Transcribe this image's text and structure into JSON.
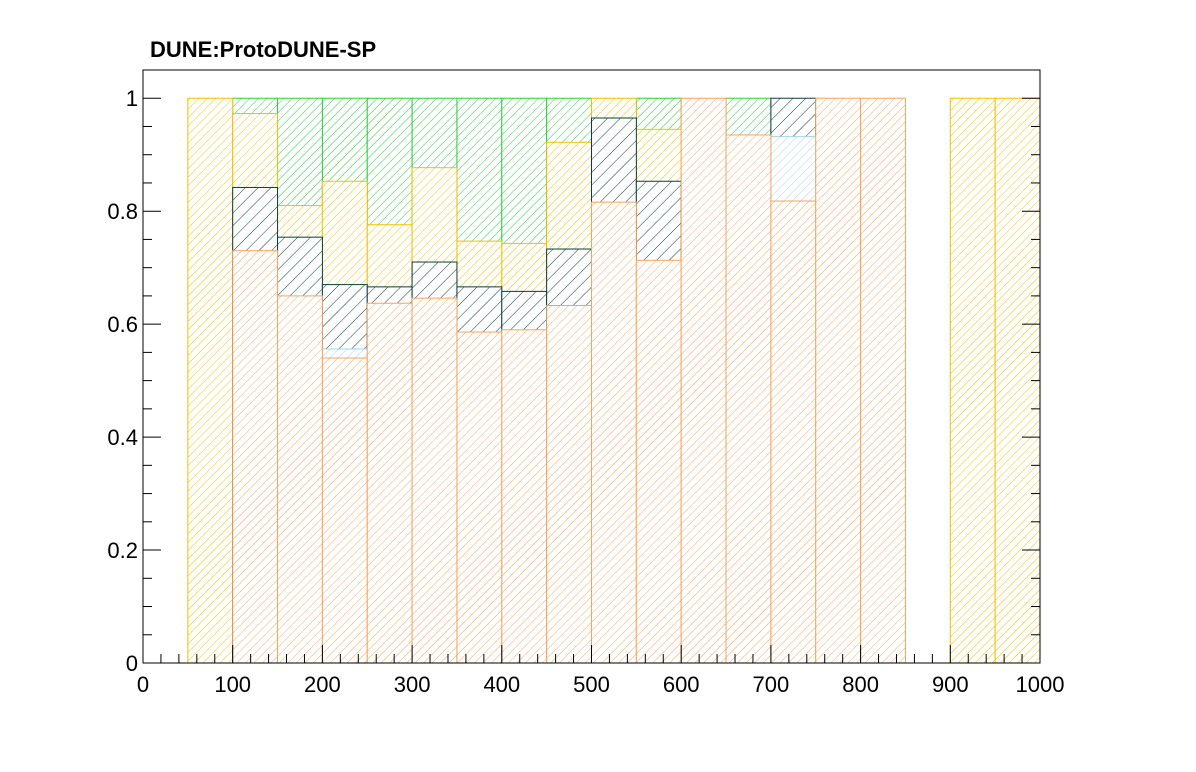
{
  "chart_data": {
    "type": "bar",
    "title": "DUNE:ProtoDUNE-SP",
    "xlabel": "",
    "ylabel": "",
    "xlim": [
      0,
      1000
    ],
    "ylim": [
      0,
      1.05
    ],
    "grid": false,
    "legend": "none",
    "bin_width": 50,
    "x_ticks": [
      "0",
      "100",
      "200",
      "300",
      "400",
      "500",
      "600",
      "700",
      "800",
      "900",
      "1000"
    ],
    "y_ticks": [
      "0",
      "0.2",
      "0.4",
      "0.6",
      "0.8",
      "1"
    ],
    "series": [
      {
        "color": "#2ecc40",
        "fill": "hatched",
        "bins": [
          {
            "x": 100,
            "y": 1.0
          },
          {
            "x": 150,
            "y": 1.0
          },
          {
            "x": 200,
            "y": 1.0
          },
          {
            "x": 250,
            "y": 1.0
          },
          {
            "x": 300,
            "y": 1.0
          },
          {
            "x": 350,
            "y": 1.0
          },
          {
            "x": 400,
            "y": 1.0
          },
          {
            "x": 450,
            "y": 1.0
          },
          {
            "x": 550,
            "y": 1.0
          },
          {
            "x": 650,
            "y": 1.0
          }
        ]
      },
      {
        "color": "#f0c000",
        "fill": "hatched",
        "bins": [
          {
            "x": 50,
            "y": 1.0
          },
          {
            "x": 100,
            "y": 0.973
          },
          {
            "x": 150,
            "y": 0.81
          },
          {
            "x": 200,
            "y": 0.853
          },
          {
            "x": 250,
            "y": 0.776
          },
          {
            "x": 300,
            "y": 0.877
          },
          {
            "x": 350,
            "y": 0.747
          },
          {
            "x": 400,
            "y": 0.743
          },
          {
            "x": 450,
            "y": 0.922
          },
          {
            "x": 500,
            "y": 1.0
          },
          {
            "x": 550,
            "y": 0.945
          },
          {
            "x": 900,
            "y": 1.0
          },
          {
            "x": 950,
            "y": 1.0
          }
        ]
      },
      {
        "color": "#0b3d3d",
        "fill": "hatched",
        "bins": [
          {
            "x": 100,
            "y": 0.842
          },
          {
            "x": 150,
            "y": 0.754
          },
          {
            "x": 200,
            "y": 0.67
          },
          {
            "x": 250,
            "y": 0.666
          },
          {
            "x": 300,
            "y": 0.71
          },
          {
            "x": 350,
            "y": 0.666
          },
          {
            "x": 400,
            "y": 0.658
          },
          {
            "x": 450,
            "y": 0.733
          },
          {
            "x": 500,
            "y": 0.965
          },
          {
            "x": 550,
            "y": 0.853
          },
          {
            "x": 700,
            "y": 1.0
          }
        ]
      },
      {
        "color": "#9fd4ee",
        "fill": "hatched",
        "bins": [
          {
            "x": 200,
            "y": 0.556
          },
          {
            "x": 700,
            "y": 0.932
          }
        ]
      },
      {
        "color": "#f4a460",
        "fill": "hatched",
        "bins": [
          {
            "x": 100,
            "y": 0.73
          },
          {
            "x": 150,
            "y": 0.65
          },
          {
            "x": 200,
            "y": 0.54
          },
          {
            "x": 250,
            "y": 0.637
          },
          {
            "x": 300,
            "y": 0.646
          },
          {
            "x": 350,
            "y": 0.586
          },
          {
            "x": 400,
            "y": 0.59
          },
          {
            "x": 450,
            "y": 0.633
          },
          {
            "x": 500,
            "y": 0.816
          },
          {
            "x": 550,
            "y": 0.713
          },
          {
            "x": 600,
            "y": 1.0
          },
          {
            "x": 650,
            "y": 0.935
          },
          {
            "x": 700,
            "y": 0.818
          },
          {
            "x": 750,
            "y": 1.0
          },
          {
            "x": 800,
            "y": 1.0
          }
        ]
      }
    ]
  }
}
